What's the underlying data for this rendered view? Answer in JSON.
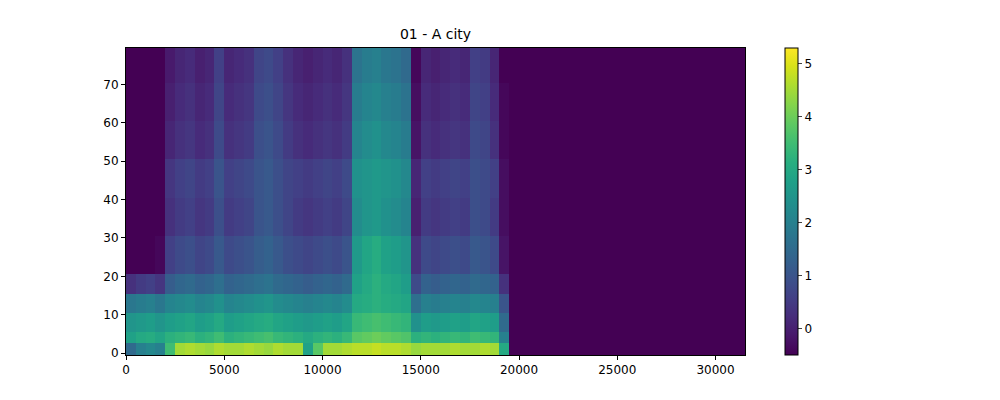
{
  "chart_data": {
    "type": "heatmap",
    "title": "01 - A city",
    "grid": false,
    "x_edges": [
      0,
      500,
      1000,
      1500,
      2000,
      2500,
      3000,
      3500,
      4000,
      4500,
      5000,
      5500,
      6000,
      6500,
      7000,
      7500,
      8000,
      8500,
      9000,
      9500,
      10000,
      10500,
      11000,
      11500,
      12000,
      12500,
      13000,
      13500,
      14000,
      14500,
      15000,
      15500,
      16000,
      16500,
      17000,
      17500,
      18000,
      18500,
      19000,
      19500,
      31500
    ],
    "y_edges": [
      -0.5,
      2.5,
      5.5,
      10.5,
      15.5,
      20.5,
      30.5,
      40.5,
      50.5,
      60.5,
      70.5,
      79.5
    ],
    "z": [
      [
        1.5,
        2.0,
        2.2,
        2.0,
        3.5,
        4.5,
        4.6,
        4.5,
        4.4,
        4.6,
        4.5,
        4.5,
        4.6,
        4.5,
        4.4,
        4.6,
        4.5,
        4.5,
        2.8,
        3.8,
        4.5,
        4.5,
        4.6,
        4.7,
        4.7,
        4.8,
        4.7,
        4.7,
        4.6,
        4.4,
        4.5,
        4.5,
        4.5,
        4.6,
        4.5,
        4.5,
        4.6,
        4.5,
        3.0,
        -0.5
      ],
      [
        2.8,
        3.0,
        3.1,
        2.9,
        3.2,
        3.3,
        3.4,
        3.2,
        3.3,
        3.5,
        3.2,
        3.3,
        3.4,
        3.5,
        3.6,
        3.4,
        3.3,
        3.2,
        3.0,
        3.2,
        3.3,
        3.2,
        3.4,
        3.8,
        3.9,
        4.0,
        3.9,
        3.8,
        3.7,
        3.2,
        3.3,
        3.2,
        3.3,
        3.4,
        3.3,
        3.5,
        3.4,
        3.3,
        2.0,
        -0.5
      ],
      [
        2.5,
        2.6,
        2.7,
        2.5,
        2.7,
        2.8,
        2.9,
        2.7,
        2.8,
        3.0,
        2.7,
        2.8,
        2.9,
        3.0,
        3.1,
        2.9,
        2.8,
        2.7,
        2.6,
        2.7,
        2.8,
        2.7,
        2.9,
        3.4,
        3.5,
        3.6,
        3.5,
        3.4,
        3.3,
        2.4,
        2.7,
        2.6,
        2.7,
        2.8,
        2.7,
        2.9,
        2.8,
        2.7,
        1.5,
        -0.5
      ],
      [
        1.8,
        1.9,
        2.0,
        1.8,
        2.1,
        2.2,
        2.3,
        2.1,
        2.2,
        2.4,
        2.1,
        2.2,
        2.3,
        2.4,
        2.5,
        2.3,
        2.2,
        2.1,
        2.0,
        2.1,
        2.2,
        2.1,
        2.3,
        3.0,
        3.1,
        3.2,
        3.1,
        3.0,
        2.9,
        1.6,
        2.0,
        1.9,
        2.0,
        2.1,
        2.0,
        2.2,
        2.1,
        2.0,
        1.0,
        -0.5
      ],
      [
        0.3,
        0.5,
        0.6,
        0.4,
        1.2,
        1.4,
        1.5,
        1.3,
        1.4,
        1.6,
        1.3,
        1.4,
        1.5,
        1.6,
        1.7,
        1.5,
        1.4,
        1.3,
        1.2,
        1.3,
        1.4,
        1.3,
        1.5,
        2.8,
        3.0,
        3.2,
        3.0,
        2.9,
        2.7,
        0.8,
        1.3,
        1.2,
        1.3,
        1.4,
        1.3,
        1.5,
        1.4,
        1.3,
        0.3,
        -0.5
      ],
      [
        -0.5,
        -0.5,
        -0.5,
        -0.4,
        0.6,
        0.8,
        0.9,
        0.7,
        0.8,
        1.1,
        0.8,
        0.9,
        1.0,
        1.2,
        1.3,
        1.1,
        0.9,
        0.8,
        0.7,
        0.8,
        0.9,
        0.8,
        1.0,
        2.6,
        2.9,
        3.1,
        2.8,
        2.7,
        2.5,
        0.3,
        0.8,
        0.7,
        0.8,
        0.9,
        0.8,
        1.1,
        1.0,
        0.8,
        -0.2,
        -0.5
      ],
      [
        -0.5,
        -0.5,
        -0.5,
        -0.5,
        0.3,
        0.5,
        0.6,
        0.4,
        0.5,
        0.9,
        0.5,
        0.6,
        0.7,
        1.0,
        1.1,
        0.9,
        0.7,
        0.5,
        0.4,
        0.5,
        0.6,
        0.5,
        0.7,
        2.3,
        2.5,
        2.6,
        2.4,
        2.3,
        2.1,
        0.0,
        0.5,
        0.4,
        0.5,
        0.6,
        0.5,
        0.9,
        0.8,
        0.5,
        -0.3,
        -0.5
      ],
      [
        -0.5,
        -0.5,
        -0.5,
        -0.5,
        0.4,
        0.6,
        0.7,
        0.5,
        0.6,
        1.0,
        0.6,
        0.7,
        0.8,
        1.0,
        1.1,
        0.9,
        0.7,
        0.6,
        0.5,
        0.6,
        0.7,
        0.6,
        0.8,
        2.4,
        2.5,
        2.6,
        2.5,
        2.4,
        2.2,
        0.1,
        0.6,
        0.5,
        0.6,
        0.7,
        0.6,
        0.9,
        0.8,
        0.6,
        -0.3,
        -0.5
      ],
      [
        -0.5,
        -0.5,
        -0.5,
        -0.5,
        0.1,
        0.3,
        0.4,
        0.2,
        0.3,
        0.8,
        0.3,
        0.4,
        0.5,
        0.9,
        1.0,
        0.8,
        0.5,
        0.3,
        0.2,
        0.3,
        0.4,
        0.3,
        0.5,
        2.1,
        2.3,
        2.4,
        2.2,
        2.1,
        1.9,
        -0.2,
        0.3,
        0.2,
        0.3,
        0.4,
        0.3,
        0.8,
        0.7,
        0.3,
        -0.4,
        -0.5
      ],
      [
        -0.5,
        -0.5,
        -0.5,
        -0.5,
        0.0,
        0.2,
        0.3,
        0.1,
        0.2,
        0.7,
        0.2,
        0.3,
        0.4,
        0.8,
        0.9,
        0.7,
        0.4,
        0.2,
        0.1,
        0.2,
        0.3,
        0.2,
        0.4,
        1.9,
        2.1,
        2.2,
        2.0,
        1.9,
        1.7,
        -0.3,
        0.2,
        0.1,
        0.2,
        0.3,
        0.2,
        0.7,
        0.6,
        0.2,
        -0.4,
        -0.5
      ],
      [
        -0.5,
        -0.5,
        -0.5,
        -0.5,
        -0.1,
        0.1,
        0.2,
        0.0,
        0.1,
        0.6,
        0.1,
        0.2,
        0.3,
        0.7,
        0.8,
        0.6,
        0.3,
        0.1,
        0.0,
        0.1,
        0.2,
        0.1,
        0.3,
        1.7,
        1.9,
        2.0,
        1.8,
        1.7,
        1.5,
        -0.4,
        0.1,
        0.0,
        0.1,
        0.2,
        0.1,
        0.6,
        0.5,
        0.1,
        -0.5,
        -0.5
      ]
    ],
    "xlim": [
      0,
      31500
    ],
    "ylim": [
      -0.5,
      79.5
    ],
    "xticks": [
      0,
      5000,
      10000,
      15000,
      20000,
      25000,
      30000
    ],
    "yticks": [
      0,
      10,
      20,
      30,
      40,
      50,
      60,
      70
    ],
    "colorbar": {
      "range": [
        -0.5,
        5.3
      ],
      "ticks": [
        0,
        1,
        2,
        3,
        4,
        5
      ]
    }
  }
}
